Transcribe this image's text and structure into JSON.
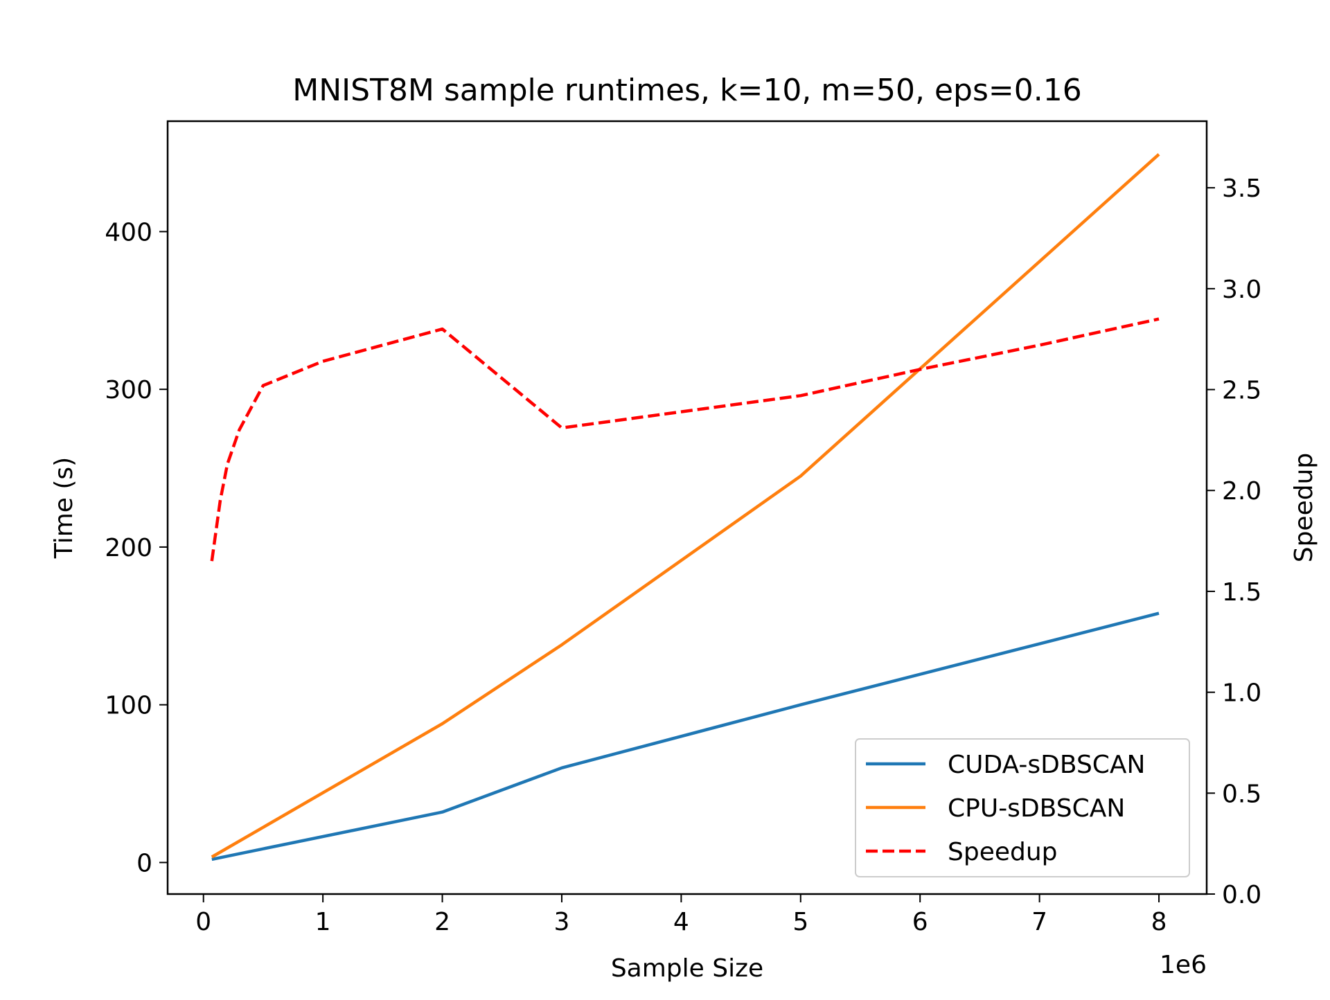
{
  "chart_data": {
    "type": "line",
    "title": "MNIST8M sample runtimes, k=10, m=50, eps=0.16",
    "xlabel": "Sample Size",
    "ylabel": "Time (s)",
    "y2label": "Speedup",
    "x_offset_label": "1e6",
    "xlim": [
      -300000,
      8400000
    ],
    "ylim": [
      -20,
      470
    ],
    "y2lim": [
      0.0,
      3.83
    ],
    "x_ticks": [
      0,
      1000000,
      2000000,
      3000000,
      4000000,
      5000000,
      6000000,
      7000000,
      8000000
    ],
    "x_tick_labels": [
      "0",
      "1",
      "2",
      "3",
      "4",
      "5",
      "6",
      "7",
      "8"
    ],
    "y_ticks": [
      0,
      100,
      200,
      300,
      400
    ],
    "y_tick_labels": [
      "0",
      "100",
      "200",
      "300",
      "400"
    ],
    "y2_ticks": [
      0.0,
      0.5,
      1.0,
      1.5,
      2.0,
      2.5,
      3.0,
      3.5
    ],
    "y2_tick_labels": [
      "0.0",
      "0.5",
      "1.0",
      "1.5",
      "2.0",
      "2.5",
      "3.0",
      "3.5"
    ],
    "grid": false,
    "legend_position": "lower right",
    "series": [
      {
        "name": "CUDA-sDBSCAN",
        "axis": "left",
        "style": "solid",
        "color": "#1f77b4",
        "x": [
          70000,
          2000000,
          3000000,
          5000000,
          8000000
        ],
        "y": [
          2,
          32,
          60,
          100,
          158
        ]
      },
      {
        "name": "CPU-sDBSCAN",
        "axis": "left",
        "style": "solid",
        "color": "#ff7f0e",
        "x": [
          70000,
          2000000,
          3000000,
          5000000,
          8000000
        ],
        "y": [
          3.5,
          88,
          138,
          245,
          449
        ]
      },
      {
        "name": "Speedup",
        "axis": "right",
        "style": "dashed",
        "color": "#ff0000",
        "x": [
          70000,
          140000,
          200000,
          300000,
          500000,
          1000000,
          2000000,
          3000000,
          4000000,
          5000000,
          6000000,
          7000000,
          8000000
        ],
        "y": [
          1.65,
          1.95,
          2.13,
          2.3,
          2.52,
          2.64,
          2.8,
          2.31,
          2.39,
          2.47,
          2.6,
          2.72,
          2.85
        ]
      }
    ]
  }
}
